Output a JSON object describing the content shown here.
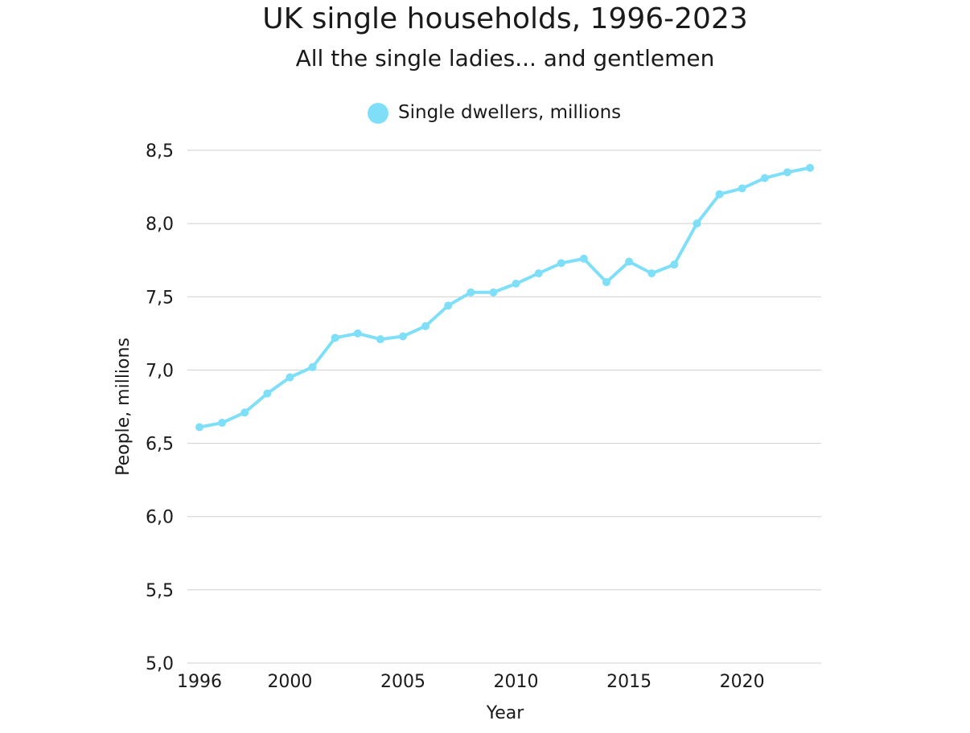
{
  "chart_data": {
    "type": "line",
    "title": "UK single households, 1996-2023",
    "subtitle": "All the single ladies... and gentlemen",
    "xlabel": "Year",
    "ylabel": "People, millions",
    "xlim": [
      1996,
      2023.5
    ],
    "ylim": [
      5.0,
      8.5
    ],
    "x_ticks": [
      1996,
      2000,
      2005,
      2010,
      2015,
      2020
    ],
    "y_ticks": [
      5.0,
      5.5,
      6.0,
      6.5,
      7.0,
      7.5,
      8.0,
      8.5
    ],
    "y_tick_labels": [
      "5,0",
      "5,5",
      "6,0",
      "6,5",
      "7,0",
      "7,5",
      "8,0",
      "8,5"
    ],
    "grid": true,
    "legend_position": "top-center",
    "x": [
      1996,
      1997,
      1998,
      1999,
      2000,
      2001,
      2002,
      2003,
      2004,
      2005,
      2006,
      2007,
      2008,
      2009,
      2010,
      2011,
      2012,
      2013,
      2014,
      2015,
      2016,
      2017,
      2018,
      2019,
      2020,
      2021,
      2022,
      2023
    ],
    "series": [
      {
        "name": "Single dwellers, millions",
        "color": "#7fdff8",
        "values": [
          6.61,
          6.64,
          6.71,
          6.84,
          6.95,
          7.02,
          7.22,
          7.25,
          7.21,
          7.23,
          7.3,
          7.44,
          7.53,
          7.53,
          7.59,
          7.66,
          7.73,
          7.76,
          7.6,
          7.74,
          7.66,
          7.72,
          8.0,
          8.2,
          8.24,
          8.31,
          8.35,
          8.38
        ]
      }
    ]
  }
}
